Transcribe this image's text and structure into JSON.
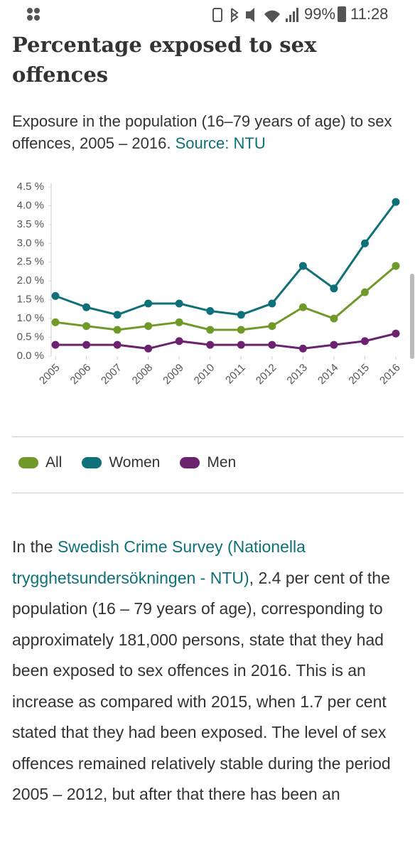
{
  "status_bar": {
    "battery": "99%",
    "time": "11:28"
  },
  "header": {
    "title": "Percentage exposed to sex offences",
    "subtitle": "Exposure in the population (16–79 years of age) to sex offences, 2005 – 2016.",
    "source_link": "Source: NTU"
  },
  "chart_data": {
    "type": "line",
    "categories": [
      "2005",
      "2006",
      "2007",
      "2008",
      "2009",
      "2010",
      "2011",
      "2012",
      "2013",
      "2014",
      "2015",
      "2016"
    ],
    "series": [
      {
        "name": "All",
        "color": "#6f9a2a",
        "values": [
          0.9,
          0.8,
          0.7,
          0.8,
          0.9,
          0.7,
          0.7,
          0.8,
          1.3,
          1.0,
          1.7,
          2.4
        ]
      },
      {
        "name": "Women",
        "color": "#0e7078",
        "values": [
          1.6,
          1.3,
          1.1,
          1.4,
          1.4,
          1.2,
          1.1,
          1.4,
          2.4,
          1.8,
          3.0,
          4.1
        ]
      },
      {
        "name": "Men",
        "color": "#6b2370",
        "values": [
          0.3,
          0.3,
          0.3,
          0.2,
          0.4,
          0.3,
          0.3,
          0.3,
          0.2,
          0.3,
          0.4,
          0.6
        ]
      }
    ],
    "ylim": [
      0,
      4.5
    ],
    "yticks": [
      {
        "value": 0,
        "label": "0.0 %"
      },
      {
        "value": 0.5,
        "label": "0.5 %"
      },
      {
        "value": 1,
        "label": "1.0 %"
      },
      {
        "value": 1.5,
        "label": "1.5 %"
      },
      {
        "value": 2,
        "label": "2.0 %"
      },
      {
        "value": 2.5,
        "label": "2.5 %"
      },
      {
        "value": 3,
        "label": "3.0 %"
      },
      {
        "value": 3.5,
        "label": "3.5 %"
      },
      {
        "value": 4,
        "label": "4.0 %"
      },
      {
        "value": 4.5,
        "label": "4.5 %"
      }
    ],
    "grid": false
  },
  "article": {
    "before_link": "In the ",
    "link": "Swedish Crime Survey (Nationella trygghetsundersökningen - NTU)",
    "after_link": ", 2.4 per cent of the population (16 – 79 years of age), corresponding to approximately 181,000 persons, state that they had been exposed to sex offences in 2016. This is an increase as compared with 2015, when 1.7 per cent stated that they had been exposed. The level of sex offences remained relatively stable during the period 2005 – 2012, but after that there has been an"
  }
}
